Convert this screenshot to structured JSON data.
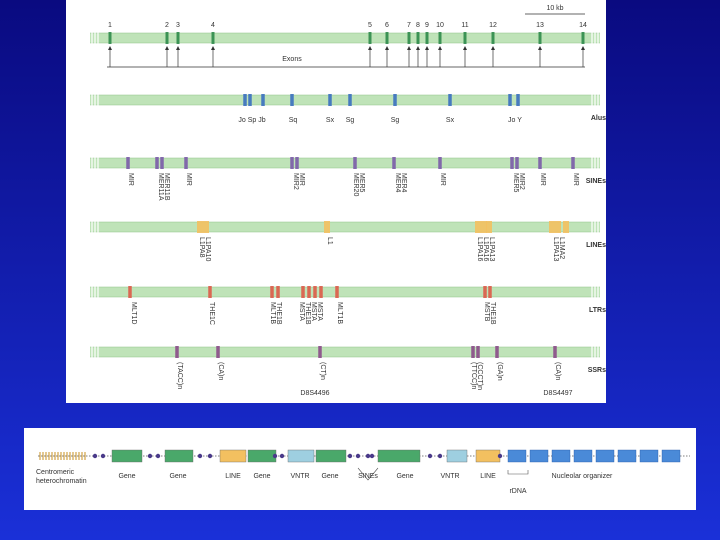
{
  "scale": "10 kb",
  "exons": {
    "numbers": [
      "1",
      "2",
      "3",
      "4",
      "5",
      "6",
      "7",
      "8",
      "9",
      "10",
      "11",
      "12",
      "13",
      "14"
    ],
    "label": "Exons"
  },
  "tracks": [
    {
      "name": "Alus",
      "labels": [
        [
          "Jo Sp Jb"
        ],
        [
          "Sq"
        ],
        [
          "Sx"
        ],
        [
          "Sg"
        ],
        [
          "Sg"
        ],
        [
          "Sx"
        ],
        [
          "Jo Y"
        ]
      ]
    },
    {
      "name": "SINEs",
      "labels": [
        [
          "MIR"
        ],
        [
          "MER11A",
          "MER11B"
        ],
        [
          "MIR"
        ],
        [
          "MIR2",
          "MIR"
        ],
        [
          "MER20",
          "MER5"
        ],
        [
          "MER4",
          "MER4"
        ],
        [
          "MIR"
        ],
        [
          "MER5",
          "MIR2"
        ],
        [
          "MIR"
        ],
        [
          "MIR"
        ]
      ]
    },
    {
      "name": "LINEs",
      "labels": [
        [
          "L1PA8",
          "L1PA10"
        ],
        [
          "L1"
        ],
        [
          "L1PA16",
          "L1PA16",
          "L1PA13"
        ],
        [
          "L1PA13",
          "L1MA2"
        ]
      ]
    },
    {
      "name": "LTRs",
      "labels": [
        [
          "MLT1D"
        ],
        [
          "THE1C"
        ],
        [
          "MLT1B",
          "THE1B"
        ],
        [
          "MSTA",
          "THE1B",
          "MSTA",
          "MSTA"
        ],
        [
          "MLT1B"
        ],
        [
          "MSTB",
          "THE1B"
        ]
      ]
    },
    {
      "name": "SSRs",
      "labels": [
        [
          "(TACC)n"
        ],
        [
          "(CA)n"
        ],
        [
          "(CT)n"
        ],
        [
          "(TTCC)n",
          "(CCCT)n"
        ],
        [
          "(GA)n"
        ],
        [
          "(CA)n"
        ]
      ],
      "markers": [
        "D8S4496",
        "D8S4497"
      ]
    }
  ],
  "legend": {
    "labels": [
      [
        "Centromeric",
        "heterochromatin"
      ],
      [
        "Gene"
      ],
      [
        "Gene"
      ],
      [
        "LINE"
      ],
      [
        "Gene"
      ],
      [
        "VNTR"
      ],
      [
        "Gene"
      ],
      [
        "SINEs"
      ],
      [
        "Gene"
      ],
      [
        "VNTR"
      ],
      [
        "LINE"
      ],
      [
        "Nucleolar organizer"
      ],
      [
        "rDNA"
      ]
    ]
  }
}
